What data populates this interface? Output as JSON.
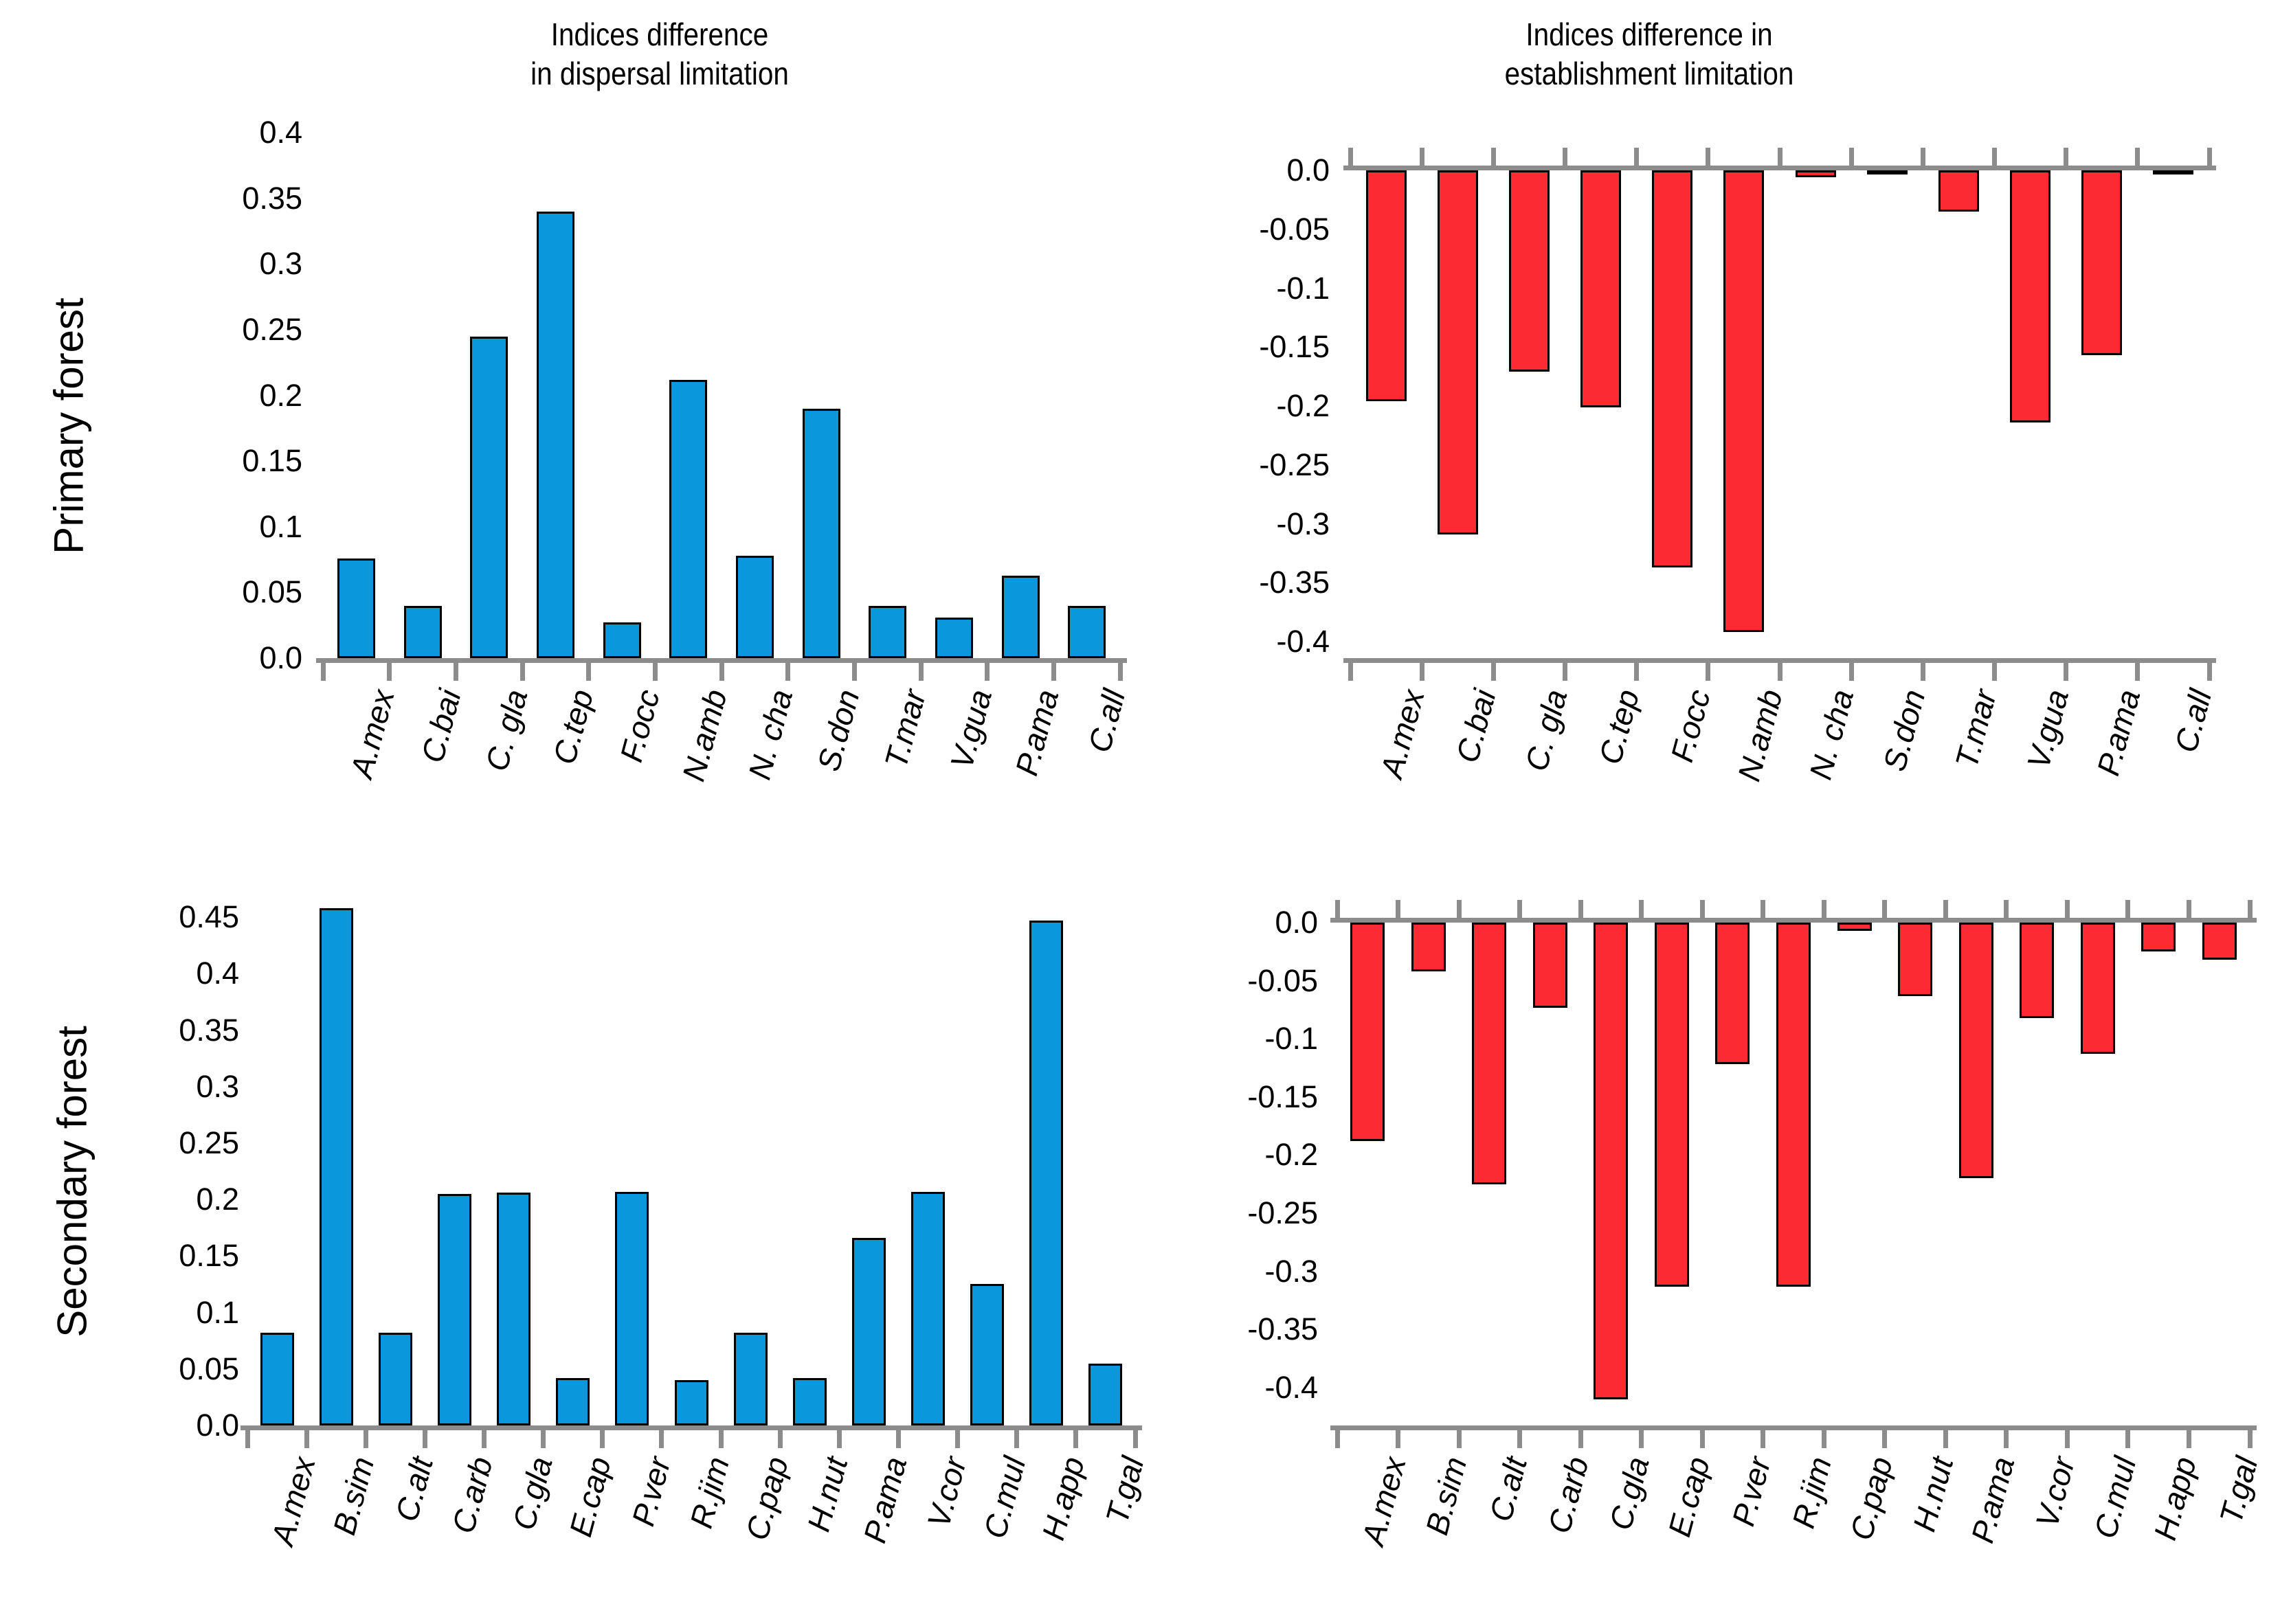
{
  "figure": {
    "rows": [
      {
        "label": "Primary forest"
      },
      {
        "label": "Secondary forest"
      }
    ]
  },
  "colors": {
    "bar_blue": "#0B97DC",
    "bar_red": "#FC2B33",
    "bar_outline": "#000000",
    "axis_gray": "#8C8C8C",
    "text": "#000000"
  },
  "chart_data": [
    {
      "id": "primary-dispersal",
      "type": "bar",
      "panel": "top-left",
      "title": "Indices difference in dispersal limitation",
      "title_lines": [
        "Indices difference",
        "in dispersal limitation"
      ],
      "row_label": "Primary forest",
      "bar_color": "#0B97DC",
      "bar_outline": "#000000",
      "legend": "none",
      "grid": false,
      "categories": [
        "A.mex",
        "C.bai",
        "C. gla",
        "C.tep",
        "F.occ",
        "N.amb",
        "N. cha",
        "S.don",
        "T.mar",
        "V.gua",
        "P.ama",
        "C.all"
      ],
      "values": [
        0.076,
        0.04,
        0.245,
        0.34,
        0.027,
        0.212,
        0.078,
        0.19,
        0.04,
        0.031,
        0.063,
        0.04
      ],
      "ylim": [
        0,
        0.4
      ],
      "yticks": [
        "0.4",
        "0.35",
        "0.3",
        "0.25",
        "0.2",
        "0.15",
        "0.1",
        "0.05",
        "0.0"
      ]
    },
    {
      "id": "primary-establishment",
      "type": "bar",
      "panel": "top-right",
      "title": "Indices difference in establishment limitation",
      "title_lines": [
        "Indices difference in",
        "establishment limitation"
      ],
      "row_label": "Primary forest",
      "bar_color": "#FC2B33",
      "bar_outline": "#000000",
      "legend": "none",
      "grid": false,
      "categories": [
        "A.mex",
        "C.bai",
        "C. gla",
        "C.tep",
        "F.occ",
        "N.amb",
        "N. cha",
        "S.don",
        "T.mar",
        "V.gua",
        "P.ama",
        "C.all"
      ],
      "values": [
        -0.196,
        -0.309,
        -0.171,
        -0.201,
        -0.337,
        -0.392,
        -0.006,
        -0.002,
        -0.035,
        -0.214,
        -0.157,
        -0.002
      ],
      "ylim": [
        -0.4,
        0
      ],
      "yticks": [
        "0.0",
        "-0.05",
        "-0.1",
        "-0.15",
        "-0.2",
        "-0.25",
        "-0.3",
        "-0.35",
        "-0.4"
      ]
    },
    {
      "id": "secondary-dispersal",
      "type": "bar",
      "panel": "bottom-left",
      "title": "",
      "title_lines": [],
      "row_label": "Secondary forest",
      "bar_color": "#0B97DC",
      "bar_outline": "#000000",
      "legend": "none",
      "grid": false,
      "categories": [
        "A.mex",
        "B.sim",
        "C.alt",
        "C.arb",
        "C.gla",
        "E.cap",
        "P.ver",
        "R.jim",
        "C.pap",
        "H.nut",
        "P.ama",
        "V.cor",
        "C.mul",
        "H.app",
        "T.gal"
      ],
      "values": [
        0.082,
        0.458,
        0.082,
        0.205,
        0.206,
        0.042,
        0.207,
        0.04,
        0.082,
        0.042,
        0.166,
        0.207,
        0.125,
        0.447,
        0.055
      ],
      "ylim": [
        0,
        0.45
      ],
      "yticks": [
        "0.45",
        "0.4",
        "0.35",
        "0.3",
        "0.25",
        "0.2",
        "0.15",
        "0.1",
        "0.05",
        "0.0"
      ]
    },
    {
      "id": "secondary-establishment",
      "type": "bar",
      "panel": "bottom-right",
      "title": "",
      "title_lines": [],
      "row_label": "Secondary forest",
      "bar_color": "#FC2B33",
      "bar_outline": "#000000",
      "legend": "none",
      "grid": false,
      "categories": [
        "A.mex",
        "B.sim",
        "C.alt",
        "C.arb",
        "C.gla",
        "E.cap",
        "P.ver",
        "R.jim",
        "C.pap",
        "H.nut",
        "P.ama",
        "V.cor",
        "C.mul",
        "H.app",
        "T.gal"
      ],
      "values": [
        -0.188,
        -0.042,
        -0.225,
        -0.073,
        -0.41,
        -0.313,
        -0.122,
        -0.313,
        -0.007,
        -0.063,
        -0.22,
        -0.082,
        -0.113,
        -0.025,
        -0.032
      ],
      "ylim": [
        -0.42,
        0
      ],
      "yticks": [
        "0.0",
        "-0.05",
        "-0.1",
        "-0.15",
        "-0.2",
        "-0.25",
        "-0.3",
        "-0.35",
        "-0.4"
      ]
    }
  ]
}
